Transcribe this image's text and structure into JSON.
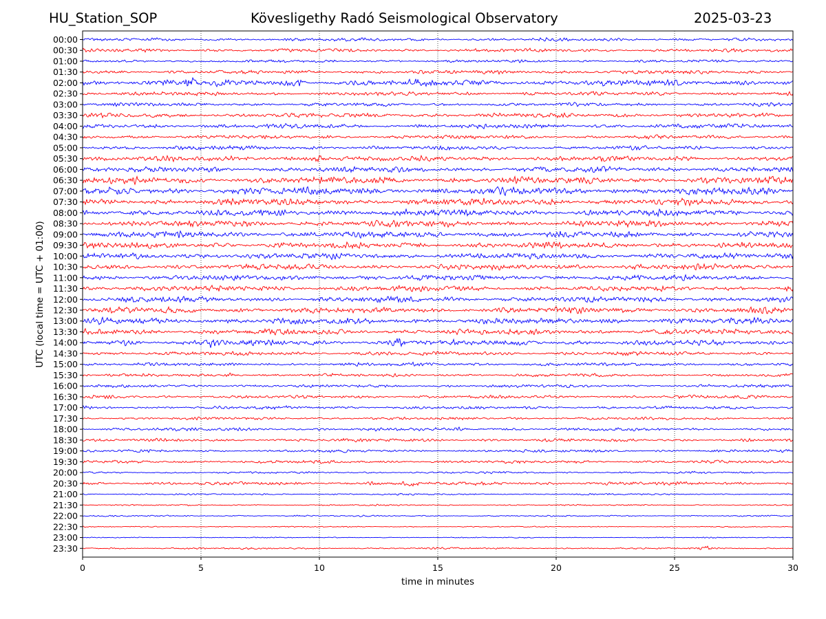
{
  "header": {
    "station": "HU_Station_SOP",
    "observatory": "Kövesligethy Radó Seismological Observatory",
    "date": "2025-03-23"
  },
  "chart_data": {
    "type": "line",
    "title": "Kövesligethy Radó Seismological Observatory",
    "xlabel": "time in minutes",
    "ylabel": "UTC (local time = UTC + 01:00)",
    "xlim": [
      0,
      30
    ],
    "x_ticks": [
      "0",
      "5",
      "10",
      "15",
      "20",
      "25",
      "30"
    ],
    "x_gridlines": [
      5,
      10,
      15,
      20,
      25
    ],
    "grid": "vertical dotted",
    "colors": [
      "#0000ff",
      "#ff0000"
    ],
    "row_labels": [
      "00:00",
      "00:30",
      "01:00",
      "01:30",
      "02:00",
      "02:30",
      "03:00",
      "03:30",
      "04:00",
      "04:30",
      "05:00",
      "05:30",
      "06:00",
      "06:30",
      "07:00",
      "07:30",
      "08:00",
      "08:30",
      "09:00",
      "09:30",
      "10:00",
      "10:30",
      "11:00",
      "11:30",
      "12:00",
      "12:30",
      "13:00",
      "13:30",
      "14:00",
      "14:30",
      "15:00",
      "15:30",
      "16:00",
      "16:30",
      "17:00",
      "17:30",
      "18:00",
      "18:30",
      "19:00",
      "19:30",
      "20:00",
      "20:30",
      "21:00",
      "21:30",
      "22:00",
      "22:30",
      "23:00",
      "23:30"
    ],
    "row_amplitude": [
      0.45,
      0.5,
      0.4,
      0.55,
      0.9,
      0.55,
      0.5,
      0.65,
      0.65,
      0.55,
      0.6,
      0.75,
      0.8,
      1.0,
      1.05,
      0.95,
      0.95,
      0.9,
      0.9,
      0.85,
      0.85,
      0.8,
      0.8,
      0.8,
      0.8,
      0.85,
      0.85,
      0.8,
      0.8,
      0.6,
      0.5,
      0.45,
      0.45,
      0.45,
      0.45,
      0.4,
      0.45,
      0.45,
      0.4,
      0.45,
      0.3,
      0.5,
      0.25,
      0.2,
      0.2,
      0.15,
      0.15,
      0.25
    ],
    "events": [
      {
        "row": "02:00",
        "minute": 4.6,
        "strength": 1.6
      },
      {
        "row": "02:00",
        "minute": 9.0,
        "strength": 1.3
      },
      {
        "row": "05:30",
        "minute": 10.0,
        "strength": 1.3
      },
      {
        "row": "14:00",
        "minute": 5.5,
        "strength": 1.7
      },
      {
        "row": "14:00",
        "minute": 13.3,
        "strength": 1.5
      },
      {
        "row": "14:00",
        "minute": 1.8,
        "strength": 1.3
      },
      {
        "row": "15:30",
        "minute": 6.3,
        "strength": 1.4
      },
      {
        "row": "18:00",
        "minute": 16.0,
        "strength": 1.3
      },
      {
        "row": "20:30",
        "minute": 13.8,
        "strength": 1.6
      },
      {
        "row": "20:30",
        "minute": 12.3,
        "strength": 1.4
      },
      {
        "row": "23:30",
        "minute": 26.3,
        "strength": 2.0
      }
    ]
  }
}
